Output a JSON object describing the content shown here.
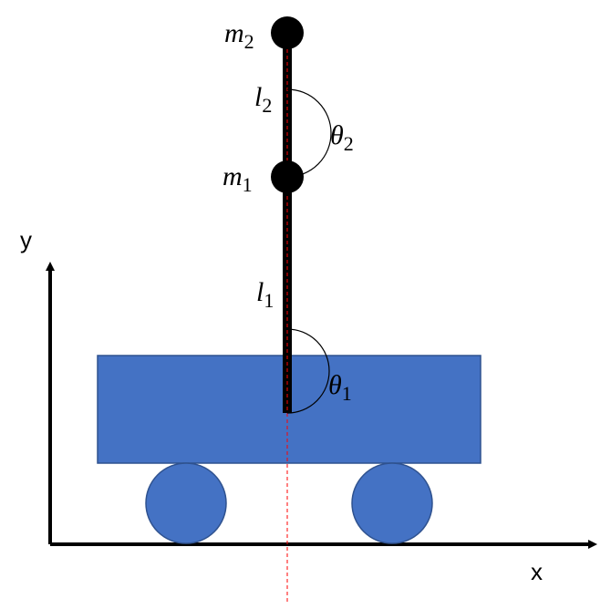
{
  "axes": {
    "x_label": "x",
    "y_label": "y"
  },
  "pendulum": {
    "m1_label": "m",
    "m1_sub": "1",
    "m2_label": "m",
    "m2_sub": "2",
    "l1_label": "l",
    "l1_sub": "1",
    "l2_label": "l",
    "l2_sub": "2",
    "theta1_label": "θ",
    "theta1_sub": "1",
    "theta2_label": "θ",
    "theta2_sub": "2"
  },
  "colors": {
    "cart": "#4472C4",
    "cart_stroke": "#2F528F",
    "rod": "#000000",
    "mass": "#000000",
    "axis": "#000000",
    "reference_line": "#FF0000"
  }
}
